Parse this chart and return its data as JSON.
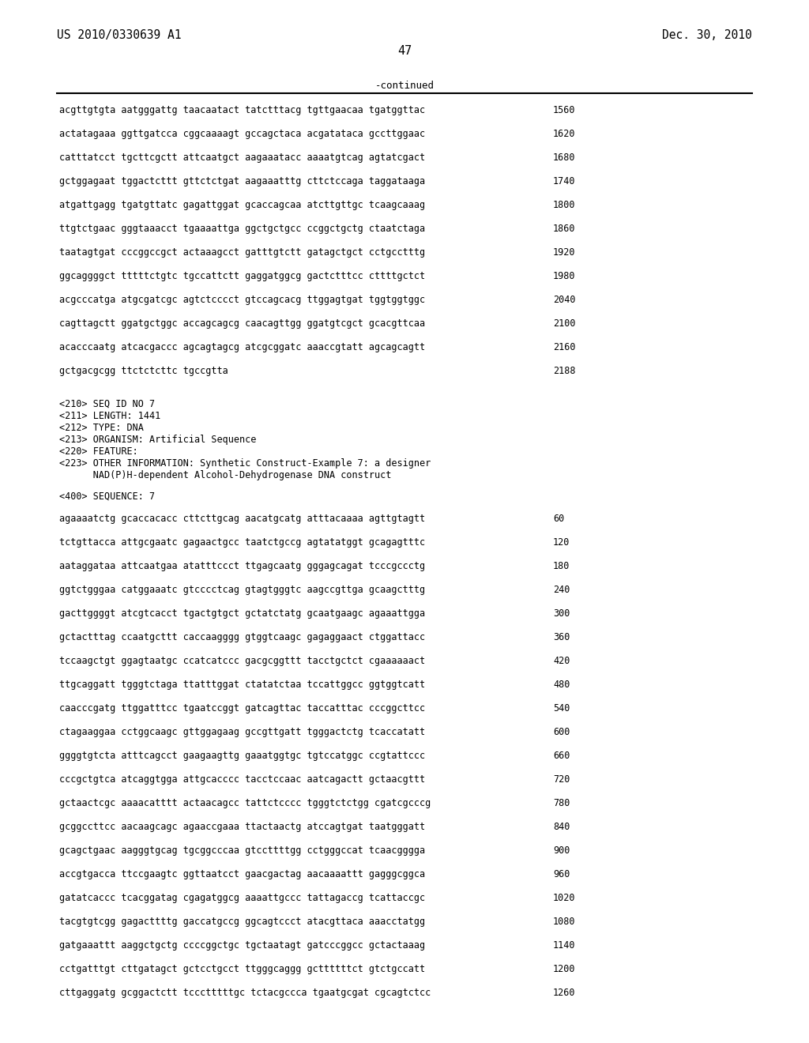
{
  "header_left": "US 2010/0330639 A1",
  "header_right": "Dec. 30, 2010",
  "page_number": "47",
  "continued_label": "-continued",
  "background_color": "#ffffff",
  "text_color": "#000000",
  "sequence_lines_continued": [
    [
      "acgttgtgta aatgggattg taacaatact tatctttacg tgttgaacaa tgatggttac",
      "1560"
    ],
    [
      "actatagaaa ggttgatcca cggcaaaagt gccagctaca acgatataca gccttggaac",
      "1620"
    ],
    [
      "catttatcct tgcttcgctt attcaatgct aagaaatacc aaaatgtcag agtatcgact",
      "1680"
    ],
    [
      "gctggagaat tggactcttt gttctctgat aagaaatttg cttctccaga taggataaga",
      "1740"
    ],
    [
      "atgattgagg tgatgttatc gagattggat gcaccagcaa atcttgttgc tcaagcaaag",
      "1800"
    ],
    [
      "ttgtctgaac gggtaaacct tgaaaattga ggctgctgcc ccggctgctg ctaatctaga",
      "1860"
    ],
    [
      "taatagtgat cccggccgct actaaagcct gatttgtctt gatagctgct cctgcctttg",
      "1920"
    ],
    [
      "ggcaggggct tttttctgtc tgccattctt gaggatggcg gactctttcc cttttgctct",
      "1980"
    ],
    [
      "acgcccatga atgcgatcgc agtctcccct gtccagcacg ttggagtgat tggtggtggc",
      "2040"
    ],
    [
      "cagttagctt ggatgctggc accagcagcg caacagttgg ggatgtcgct gcacgttcaa",
      "2100"
    ],
    [
      "acacccaatg atcacgaccc agcagtagcg atcgcggatc aaaccgtatt agcagcagtt",
      "2160"
    ],
    [
      "gctgacgcgg ttctctcttc tgccgtta",
      "2188"
    ]
  ],
  "metadata_lines": [
    "<210> SEQ ID NO 7",
    "<211> LENGTH: 1441",
    "<212> TYPE: DNA",
    "<213> ORGANISM: Artificial Sequence",
    "<220> FEATURE:",
    "<223> OTHER INFORMATION: Synthetic Construct-Example 7: a designer",
    "      NAD(P)H-dependent Alcohol-Dehydrogenase DNA construct"
  ],
  "sequence_header": "<400> SEQUENCE: 7",
  "sequence_lines_new": [
    [
      "agaaaatctg gcaccacacc cttcttgcag aacatgcatg atttacaaaa agttgtagtt",
      "60"
    ],
    [
      "tctgttacca attgcgaatc gagaactgcc taatctgccg agtatatggt gcagagtttc",
      "120"
    ],
    [
      "aataggataa attcaatgaa atatttccct ttgagcaatg gggagcagat tcccgccctg",
      "180"
    ],
    [
      "ggtctgggaa catggaaatc gtcccctcag gtagtgggtc aagccgttga gcaagctttg",
      "240"
    ],
    [
      "gacttggggt atcgtcacct tgactgtgct gctatctatg gcaatgaagc agaaattgga",
      "300"
    ],
    [
      "gctactttag ccaatgcttt caccaagggg gtggtcaagc gagaggaact ctggattacc",
      "360"
    ],
    [
      "tccaagctgt ggagtaatgc ccatcatccc gacgcggttt tacctgctct cgaaaaaact",
      "420"
    ],
    [
      "ttgcaggatt tgggtctaga ttatttggat ctatatctaa tccattggcc ggtggtcatt",
      "480"
    ],
    [
      "caacccgatg ttggatttcc tgaatccggt gatcagttac taccatttac cccggcttcc",
      "540"
    ],
    [
      "ctagaaggaa cctggcaagc gttggagaag gccgttgatt tgggactctg tcaccatatt",
      "600"
    ],
    [
      "ggggtgtcta atttcagcct gaagaagttg gaaatggtgc tgtccatggc ccgtattccc",
      "660"
    ],
    [
      "cccgctgtca atcaggtgga attgcacccc tacctccaac aatcagactt gctaacgttt",
      "720"
    ],
    [
      "gctaactcgc aaaacatttt actaacagcc tattctcccc tgggtctctgg cgatcgcccg",
      "780"
    ],
    [
      "gcggccttcc aacaagcagc agaaccgaaa ttactaactg atccagtgat taatgggatt",
      "840"
    ],
    [
      "gcagctgaac aagggtgcag tgcggcccaa gtccttttgg cctgggccat tcaacgggga",
      "900"
    ],
    [
      "accgtgacca ttccgaagtc ggttaatcct gaacgactag aacaaaattt gagggcggca",
      "960"
    ],
    [
      "gatatcaccc tcacggatag cgagatggcg aaaattgccc tattagaccg tcattaccgc",
      "1020"
    ],
    [
      "tacgtgtcgg gagacttttg gaccatgccg ggcagtccct atacgttaca aaacctatgg",
      "1080"
    ],
    [
      "gatgaaattt aaggctgctg ccccggctgc tgctaatagt gatcccggcc gctactaaag",
      "1140"
    ],
    [
      "cctgatttgt cttgatagct gctcctgcct ttgggcaggg gcttttttct gtctgccatt",
      "1200"
    ],
    [
      "cttgaggatg gcggactctt tccctttttgc tctacgccca tgaatgcgat cgcagtctcc",
      "1260"
    ]
  ]
}
